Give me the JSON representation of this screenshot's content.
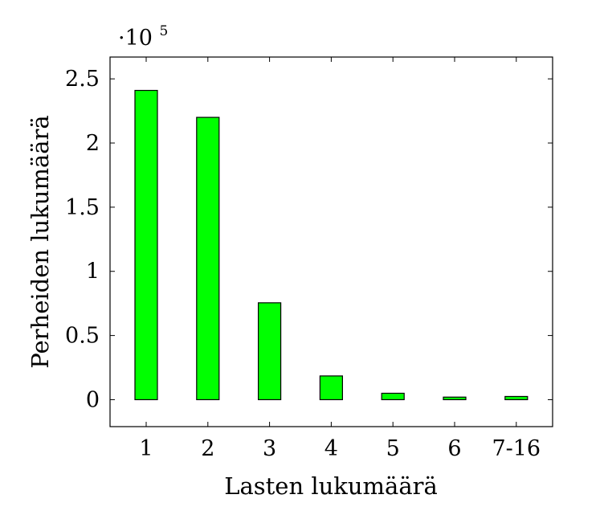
{
  "chart_data": {
    "type": "bar",
    "title": "",
    "xlabel": "Lasten lukumäärä",
    "ylabel": "Perheiden lukumäärä",
    "y_multiplier_base": "·10",
    "y_multiplier_exponent": "5",
    "categories": [
      "1",
      "2",
      "3",
      "4",
      "5",
      "6",
      "7-16"
    ],
    "values": [
      2.41,
      2.2,
      0.755,
      0.185,
      0.05,
      0.02,
      0.025
    ],
    "yticks": [
      0,
      0.5,
      1,
      1.5,
      2,
      2.5
    ],
    "ytick_labels": [
      "0",
      "0.5",
      "1",
      "1.5",
      "2",
      "2.5"
    ],
    "ylim": [
      -0.21,
      2.67
    ],
    "grid": false,
    "bar_color": "#00ff00"
  }
}
